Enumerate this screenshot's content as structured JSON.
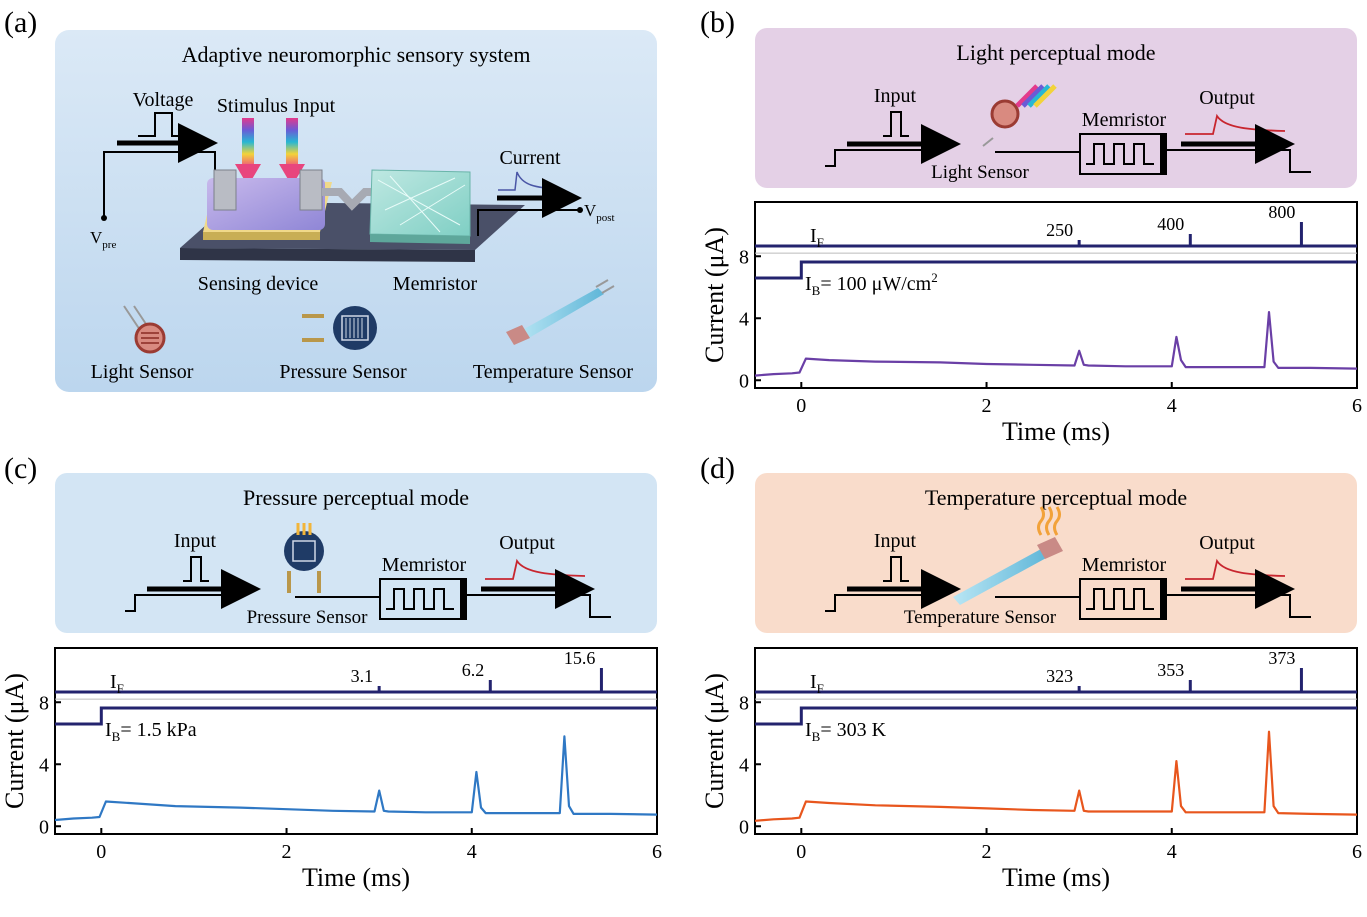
{
  "panel_labels": {
    "a": "(a)",
    "b": "(b)",
    "c": "(c)",
    "d": "(d)"
  },
  "panel_a": {
    "title": "Adaptive neuromorphic sensory system",
    "voltage": "Voltage",
    "stimulus": "Stimulus Input",
    "current": "Current",
    "vpre": "V",
    "vpre_sub": "pre",
    "vpost": "V",
    "vpost_sub": "post",
    "sensing": "Sensing device",
    "memristor": "Memristor",
    "light": "Light Sensor",
    "pressure": "Pressure Sensor",
    "temperature": "Temperature Sensor",
    "colors": {
      "bg_top": "#dbe9f6",
      "bg_bottom": "#bcd6ee"
    }
  },
  "modes": {
    "b": {
      "title": "Light perceptual mode",
      "input": "Input",
      "output": "Output",
      "memristor": "Memristor",
      "sensor": "Light Sensor",
      "bg": "#e4d0e6"
    },
    "c": {
      "title": "Pressure perceptual mode",
      "input": "Input",
      "output": "Output",
      "memristor": "Memristor",
      "sensor": "Pressure Sensor",
      "bg": "#d3e5f4"
    },
    "d": {
      "title": "Temperature perceptual mode",
      "input": "Input",
      "output": "Output",
      "memristor": "Memristor",
      "sensor": "Temperature Sensor",
      "bg": "#f9dccb"
    }
  },
  "chart_data": [
    {
      "type": "line",
      "panel": "b",
      "xlabel": "Time (ms)",
      "ylabel": "Current (μA)",
      "xlim": [
        -0.5,
        6
      ],
      "ylim": [
        -0.5,
        11.5
      ],
      "xticks": [
        0,
        2,
        4,
        6
      ],
      "yticks": [
        0,
        4,
        8
      ],
      "if_label": "I",
      "if_sub": "F",
      "ib_label": "I",
      "ib_sub": "B",
      "ib_value": "= 100 μW/cm",
      "ib_sup": "2",
      "pulse_labels": [
        "250",
        "400",
        "800"
      ],
      "series": [
        {
          "color": "#6a3fa6",
          "x": [
            -0.5,
            -0.3,
            -0.1,
            -0.02,
            0.05,
            0.3,
            0.8,
            1.5,
            2.0,
            2.5,
            2.95,
            3.0,
            3.05,
            3.1,
            3.5,
            4.0,
            4.05,
            4.1,
            4.15,
            4.5,
            5.0,
            5.05,
            5.1,
            5.15,
            5.5,
            6.0
          ],
          "y": [
            0.3,
            0.4,
            0.45,
            0.5,
            1.4,
            1.3,
            1.2,
            1.15,
            1.05,
            1.0,
            0.95,
            1.9,
            1.0,
            0.95,
            0.9,
            0.9,
            2.8,
            1.3,
            0.85,
            0.85,
            0.85,
            4.4,
            1.2,
            0.8,
            0.8,
            0.75
          ]
        }
      ]
    },
    {
      "type": "line",
      "panel": "c",
      "xlabel": "Time (ms)",
      "ylabel": "Current (μA)",
      "xlim": [
        -0.5,
        6
      ],
      "ylim": [
        -0.5,
        11.5
      ],
      "xticks": [
        0,
        2,
        4,
        6
      ],
      "yticks": [
        0,
        4,
        8
      ],
      "if_label": "I",
      "if_sub": "F",
      "ib_label": "I",
      "ib_sub": "B",
      "ib_value": "= 1.5 kPa",
      "ib_sup": "",
      "pulse_labels": [
        "3.1",
        "6.2",
        "15.6"
      ],
      "series": [
        {
          "color": "#2f78c4",
          "x": [
            -0.5,
            -0.3,
            -0.1,
            -0.02,
            0.05,
            0.3,
            0.8,
            1.5,
            2.0,
            2.5,
            2.95,
            3.0,
            3.05,
            3.1,
            3.5,
            4.0,
            4.05,
            4.1,
            4.15,
            4.5,
            4.95,
            5.0,
            5.05,
            5.1,
            5.5,
            6.0
          ],
          "y": [
            0.4,
            0.5,
            0.55,
            0.6,
            1.6,
            1.5,
            1.3,
            1.2,
            1.1,
            1.0,
            0.95,
            2.3,
            1.0,
            0.95,
            0.9,
            0.9,
            3.5,
            1.2,
            0.85,
            0.85,
            0.85,
            5.8,
            1.3,
            0.8,
            0.8,
            0.75
          ]
        }
      ]
    },
    {
      "type": "line",
      "panel": "d",
      "xlabel": "Time (ms)",
      "ylabel": "Current (μA)",
      "xlim": [
        -0.5,
        6
      ],
      "ylim": [
        -0.5,
        11.5
      ],
      "xticks": [
        0,
        2,
        4,
        6
      ],
      "yticks": [
        0,
        4,
        8
      ],
      "if_label": "I",
      "if_sub": "F",
      "ib_label": "I",
      "ib_sub": "B",
      "ib_value": "= 303 K",
      "ib_sup": "",
      "pulse_labels": [
        "323",
        "353",
        "373"
      ],
      "series": [
        {
          "color": "#e8561d",
          "x": [
            -0.5,
            -0.3,
            -0.1,
            -0.02,
            0.05,
            0.3,
            0.8,
            1.5,
            2.0,
            2.5,
            2.95,
            3.0,
            3.05,
            3.1,
            3.5,
            4.0,
            4.05,
            4.1,
            4.15,
            4.5,
            5.0,
            5.05,
            5.1,
            5.15,
            5.5,
            6.0
          ],
          "y": [
            0.35,
            0.45,
            0.5,
            0.55,
            1.6,
            1.5,
            1.35,
            1.25,
            1.15,
            1.05,
            1.0,
            2.3,
            1.0,
            0.95,
            0.95,
            0.95,
            4.2,
            1.3,
            0.9,
            0.9,
            0.9,
            6.1,
            1.3,
            0.85,
            0.8,
            0.75
          ]
        }
      ]
    }
  ]
}
